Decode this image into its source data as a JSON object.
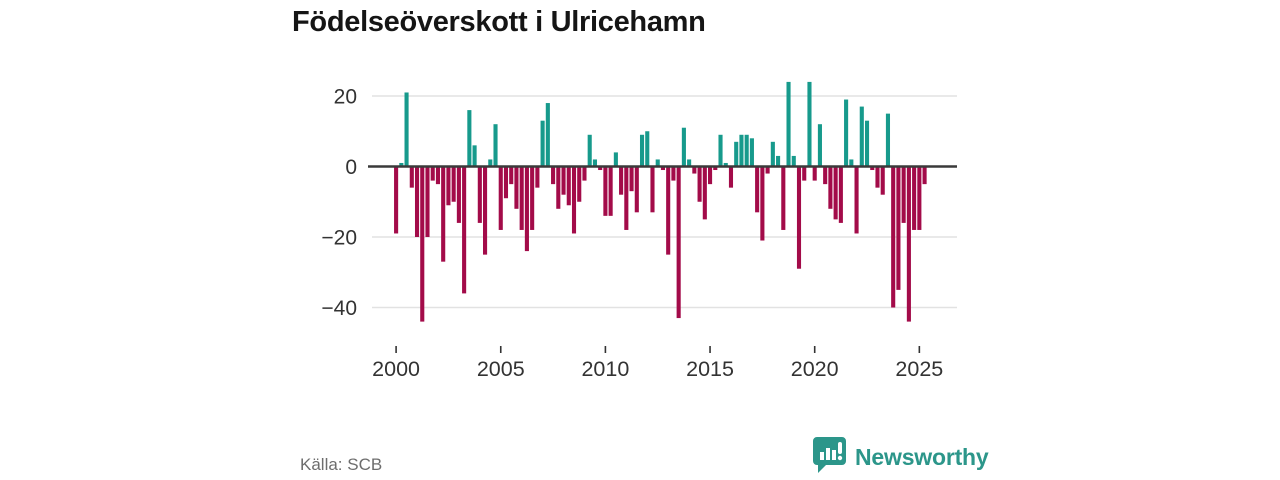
{
  "title": "Födelseöverskott i Ulricehamn",
  "source": "Källa: SCB",
  "branding": {
    "name": "Newsworthy"
  },
  "colors": {
    "positive": "#179a8c",
    "negative": "#a30b49",
    "axis": "#3a3a3a",
    "grid": "#e2e2e2",
    "tick_label": "#333333",
    "title_text": "#151515",
    "source_text": "#6d6d6d",
    "brand": "#2c968a"
  },
  "chart_data": {
    "type": "bar",
    "title": "Födelseöverskott i Ulricehamn",
    "xlabel": "",
    "ylabel": "",
    "period": "quarterly",
    "start": "2000Q1",
    "end": "2025Q2",
    "x_ticks": [
      2000,
      2005,
      2010,
      2015,
      2020,
      2025
    ],
    "y_ticks": [
      20,
      0,
      -20,
      -40
    ],
    "ylim": [
      -47,
      25
    ],
    "grid": true,
    "legend": "none",
    "values": [
      -19,
      1,
      21,
      -6,
      -20,
      -44,
      -20,
      -4,
      -5,
      -27,
      -11,
      -10,
      -16,
      -36,
      16,
      6,
      -16,
      -25,
      2,
      12,
      -18,
      -9,
      -5,
      -12,
      -18,
      -24,
      -18,
      -6,
      13,
      18,
      -5,
      -12,
      -8,
      -11,
      -19,
      -10,
      -4,
      9,
      2,
      -1,
      -14,
      -14,
      4,
      -8,
      -18,
      -7,
      -13,
      9,
      10,
      -13,
      2,
      -1,
      -25,
      -4,
      -43,
      11,
      2,
      -2,
      -10,
      -15,
      -5,
      -1,
      9,
      1,
      -6,
      7,
      9,
      9,
      8,
      -13,
      -21,
      -2,
      7,
      3,
      -18,
      24,
      3,
      -29,
      -4,
      24,
      -4,
      12,
      -5,
      -12,
      -15,
      -16,
      19,
      2,
      -19,
      17,
      13,
      -1,
      -6,
      -8,
      15,
      -40,
      -35,
      -16,
      -44,
      -18,
      -18,
      -5
    ]
  }
}
